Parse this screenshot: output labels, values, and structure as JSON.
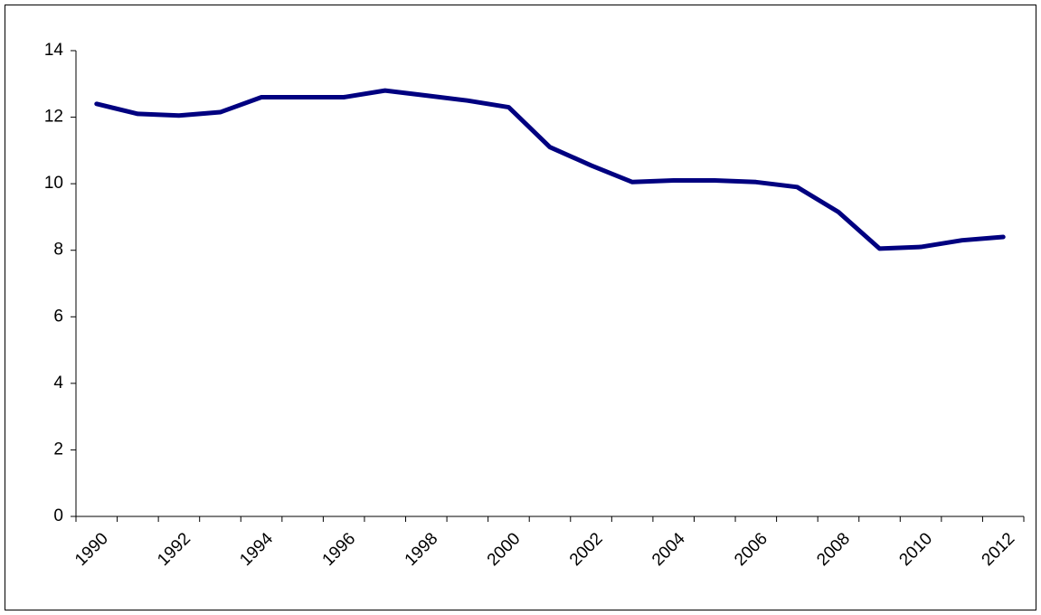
{
  "chart_data": {
    "type": "line",
    "categories": [
      "1990",
      null,
      "1992",
      null,
      "1994",
      null,
      "1996",
      null,
      "1998",
      null,
      "2000",
      null,
      "2002",
      null,
      "2004",
      null,
      "2006",
      null,
      "2008",
      null,
      "2010",
      null,
      "2012"
    ],
    "series": [
      {
        "color": "#000080",
        "values": [
          12.4,
          12.1,
          12.05,
          12.15,
          12.6,
          12.6,
          12.6,
          12.8,
          12.65,
          12.5,
          12.3,
          11.1,
          10.55,
          10.05,
          10.1,
          10.1,
          10.05,
          9.9,
          9.15,
          8.05,
          8.1,
          8.3,
          8.4
        ]
      }
    ],
    "ylim": [
      0,
      14
    ],
    "yticks": [
      0,
      2,
      4,
      6,
      8,
      10,
      12,
      14
    ],
    "grid": false
  }
}
